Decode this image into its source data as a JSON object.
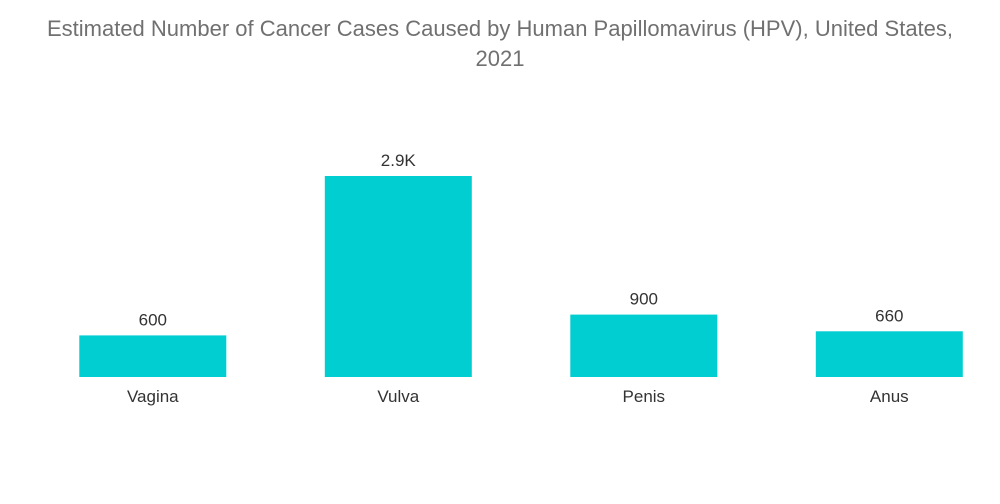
{
  "chart_data": {
    "type": "bar",
    "title_line1": "Estimated Number of Cancer Cases Caused by Human Papillomavirus (HPV), United States,",
    "title_line2": "2021",
    "categories": [
      "Vagina",
      "Vulva",
      "Penis",
      "Anus"
    ],
    "values": [
      600,
      2900,
      900,
      660
    ],
    "value_labels": [
      "600",
      "2.9K",
      "900",
      "660"
    ],
    "xlabel": "",
    "ylabel": "",
    "ylim": [
      0,
      2900
    ],
    "grid": false,
    "legend": "none",
    "bar_color": "#00CED1"
  }
}
